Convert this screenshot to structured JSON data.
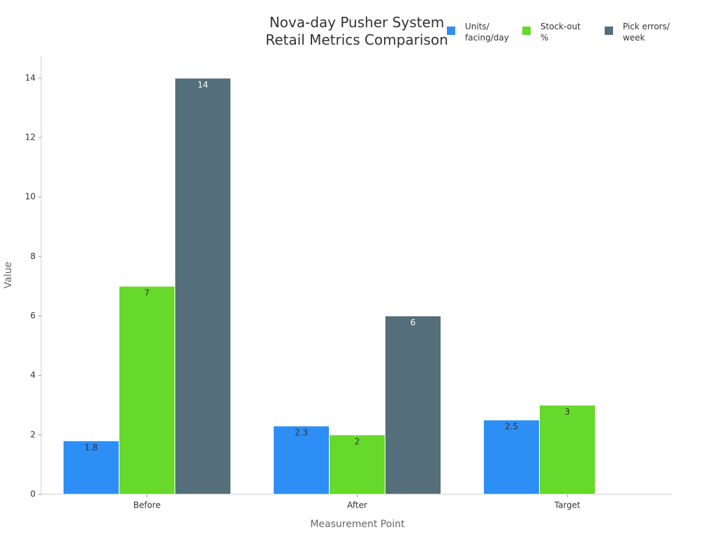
{
  "chart_data": {
    "type": "bar",
    "title": "Nova-day Pusher System Retail Metrics Comparison",
    "x_label": "Measurement Point",
    "y_label": "Value",
    "categories": [
      "Before",
      "After",
      "Target"
    ],
    "series": [
      {
        "name": "Units/ facing/day",
        "color": "#2d8ff5",
        "values": [
          1.8,
          2.3,
          2.5
        ]
      },
      {
        "name": "Stock-out %",
        "color": "#66d92a",
        "values": [
          7,
          2,
          3
        ]
      },
      {
        "name": "Pick errors/ week",
        "color": "#546e7a",
        "values": [
          14,
          6,
          null
        ]
      }
    ],
    "ylim": [
      0,
      14.75
    ],
    "yticks": [
      0,
      2,
      4,
      6,
      8,
      10,
      12,
      14
    ],
    "grid": false,
    "legend": "top-right"
  }
}
